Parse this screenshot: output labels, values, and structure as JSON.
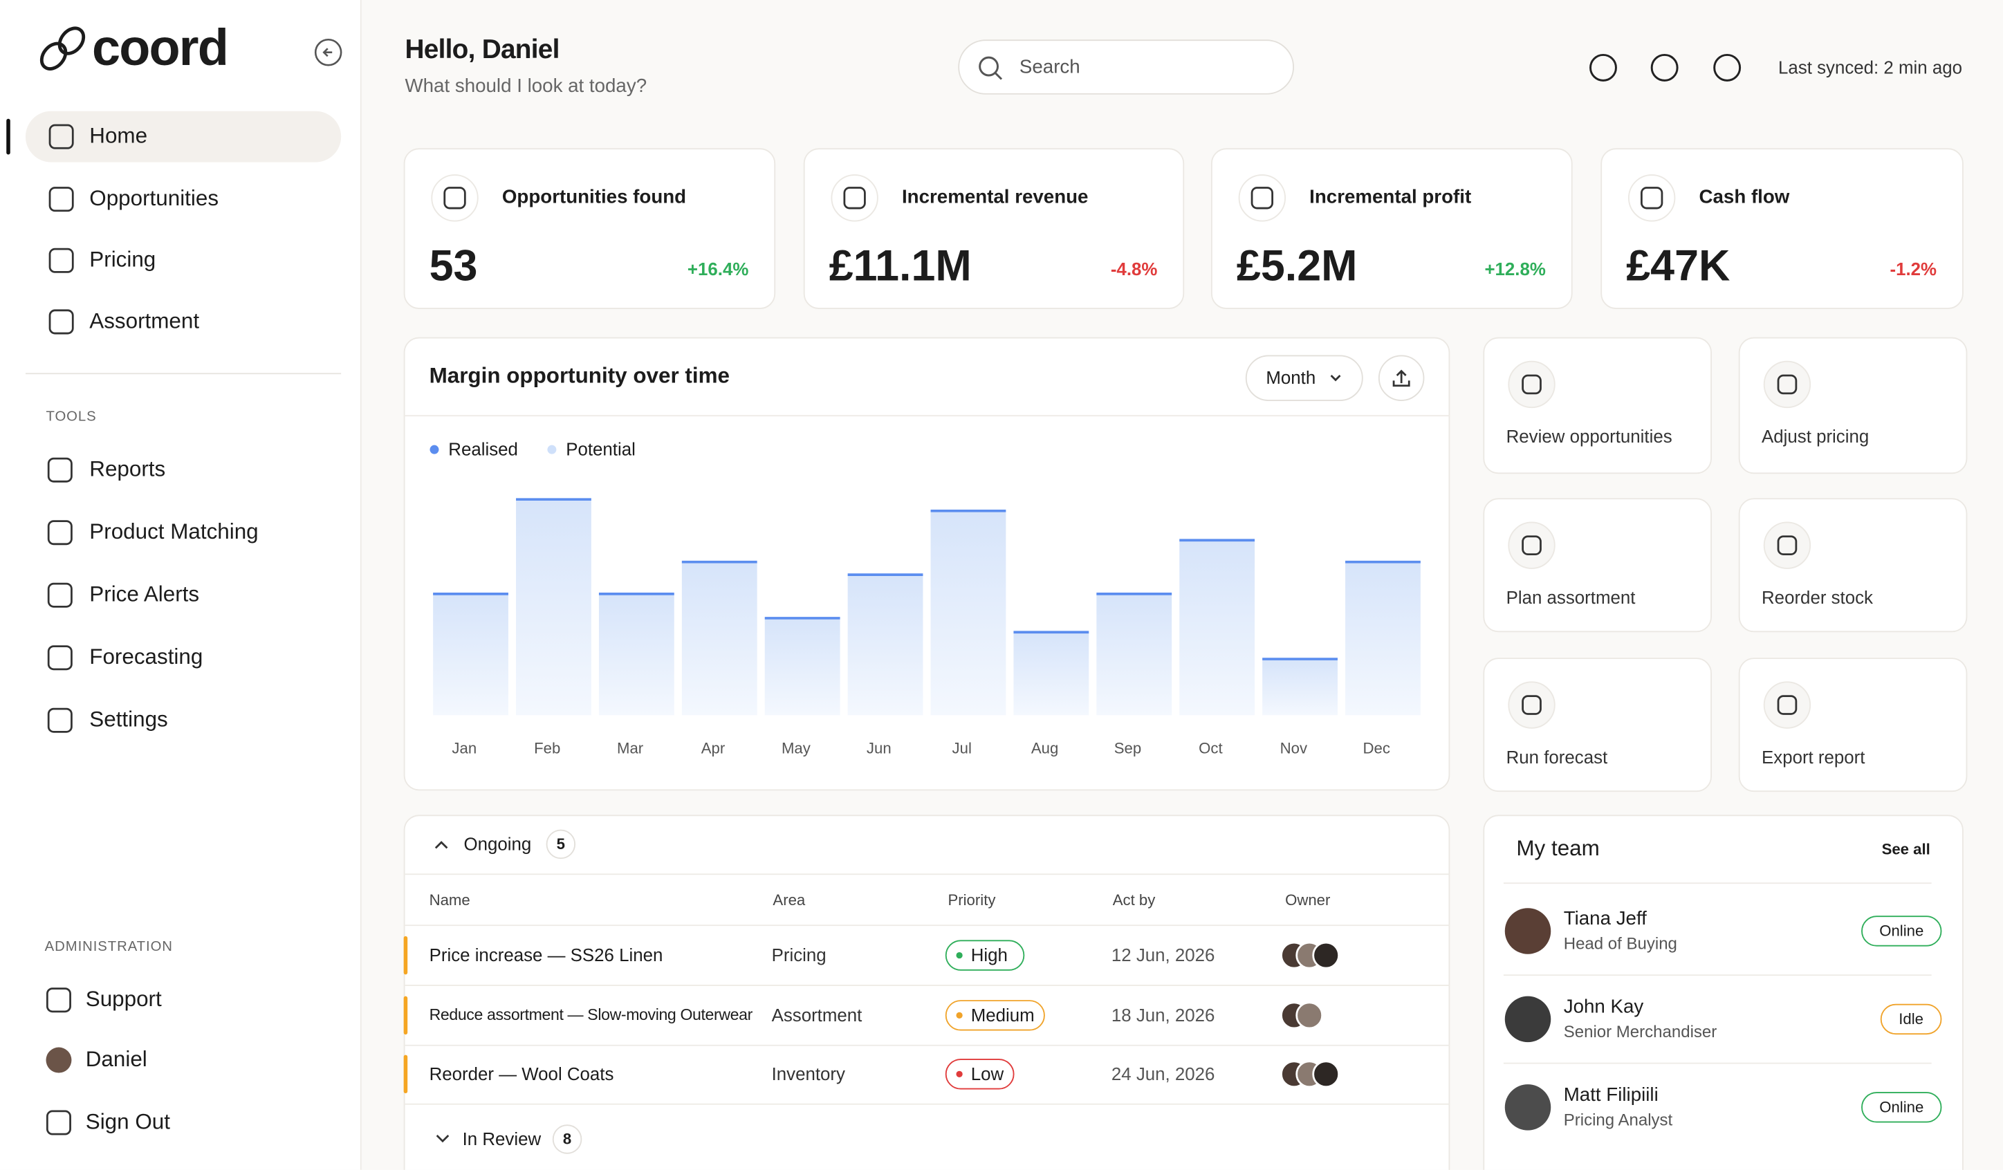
{
  "sidebar": {
    "brand": "coord",
    "nav": [
      "Home",
      "Opportunities",
      "Pricing",
      "Assortment"
    ],
    "tools_heading": "TOOLS",
    "tools": [
      "Reports",
      "Product Matching",
      "Price Alerts",
      "Forecasting",
      "Settings"
    ],
    "admin_heading": "ADMINISTRATION",
    "admin": [
      "Support",
      "Daniel",
      "Sign Out"
    ]
  },
  "header": {
    "greeting": "Hello, Daniel",
    "subtitle": "What should I look at today?",
    "search_placeholder": "Search",
    "sync": "Last synced: 2 min ago"
  },
  "kpis": [
    {
      "label": "Opportunities found",
      "value": "53",
      "change": "+16.4%"
    },
    {
      "label": "Incremental revenue",
      "value": "£11.1M",
      "change": "-4.8%"
    },
    {
      "label": "Incremental profit",
      "value": "£5.2M",
      "change": "+12.8%"
    },
    {
      "label": "Cash flow",
      "value": "£47K",
      "change": "-1.2%"
    }
  ],
  "chart_data": {
    "type": "bar",
    "title": "Margin opportunity over time",
    "period": "Month",
    "categories": [
      "Jan",
      "Feb",
      "Mar",
      "Apr",
      "May",
      "Jun",
      "Jul",
      "Aug",
      "Sep",
      "Oct",
      "Nov",
      "Dec"
    ],
    "series": [
      {
        "name": "Realised",
        "color": "#5b8def",
        "values": [
          95,
          169,
          95,
          120,
          76,
          110,
          160,
          65,
          95,
          137,
          44,
          120
        ]
      },
      {
        "name": "Potential",
        "color": "#cfe0fa"
      }
    ],
    "ylim": [
      0,
      200
    ]
  },
  "actions": [
    "Review opportunities",
    "Adjust pricing",
    "Plan assortment",
    "Reorder stock",
    "Run forecast",
    "Export report"
  ],
  "table": {
    "group": "Ongoing",
    "group_count": 5,
    "columns": [
      "Name",
      "Area",
      "Priority",
      "Act by",
      "Owner"
    ],
    "rows": [
      [
        "Price increase — SS26 Linen",
        "Pricing",
        "High",
        "12 Jun, 2026"
      ],
      [
        "Reduce assortment — Slow-moving Outerwear",
        "Assortment",
        "Medium",
        "18 Jun, 2026"
      ],
      [
        "Reorder — Wool Coats",
        "Inventory",
        "Low",
        "24 Jun, 2026"
      ]
    ],
    "next_group": "In Review",
    "next_count": 8
  },
  "team": {
    "title": "My team",
    "see_all": "See all",
    "members": [
      {
        "name": "Tiana Jeff",
        "role": "Head of Buying",
        "status": "Online"
      },
      {
        "name": "John Kay",
        "role": "Senior Merchandiser",
        "status": "Idle"
      },
      {
        "name": "Matt Filipiili",
        "role": "Pricing Analyst",
        "status": "Online"
      }
    ]
  }
}
